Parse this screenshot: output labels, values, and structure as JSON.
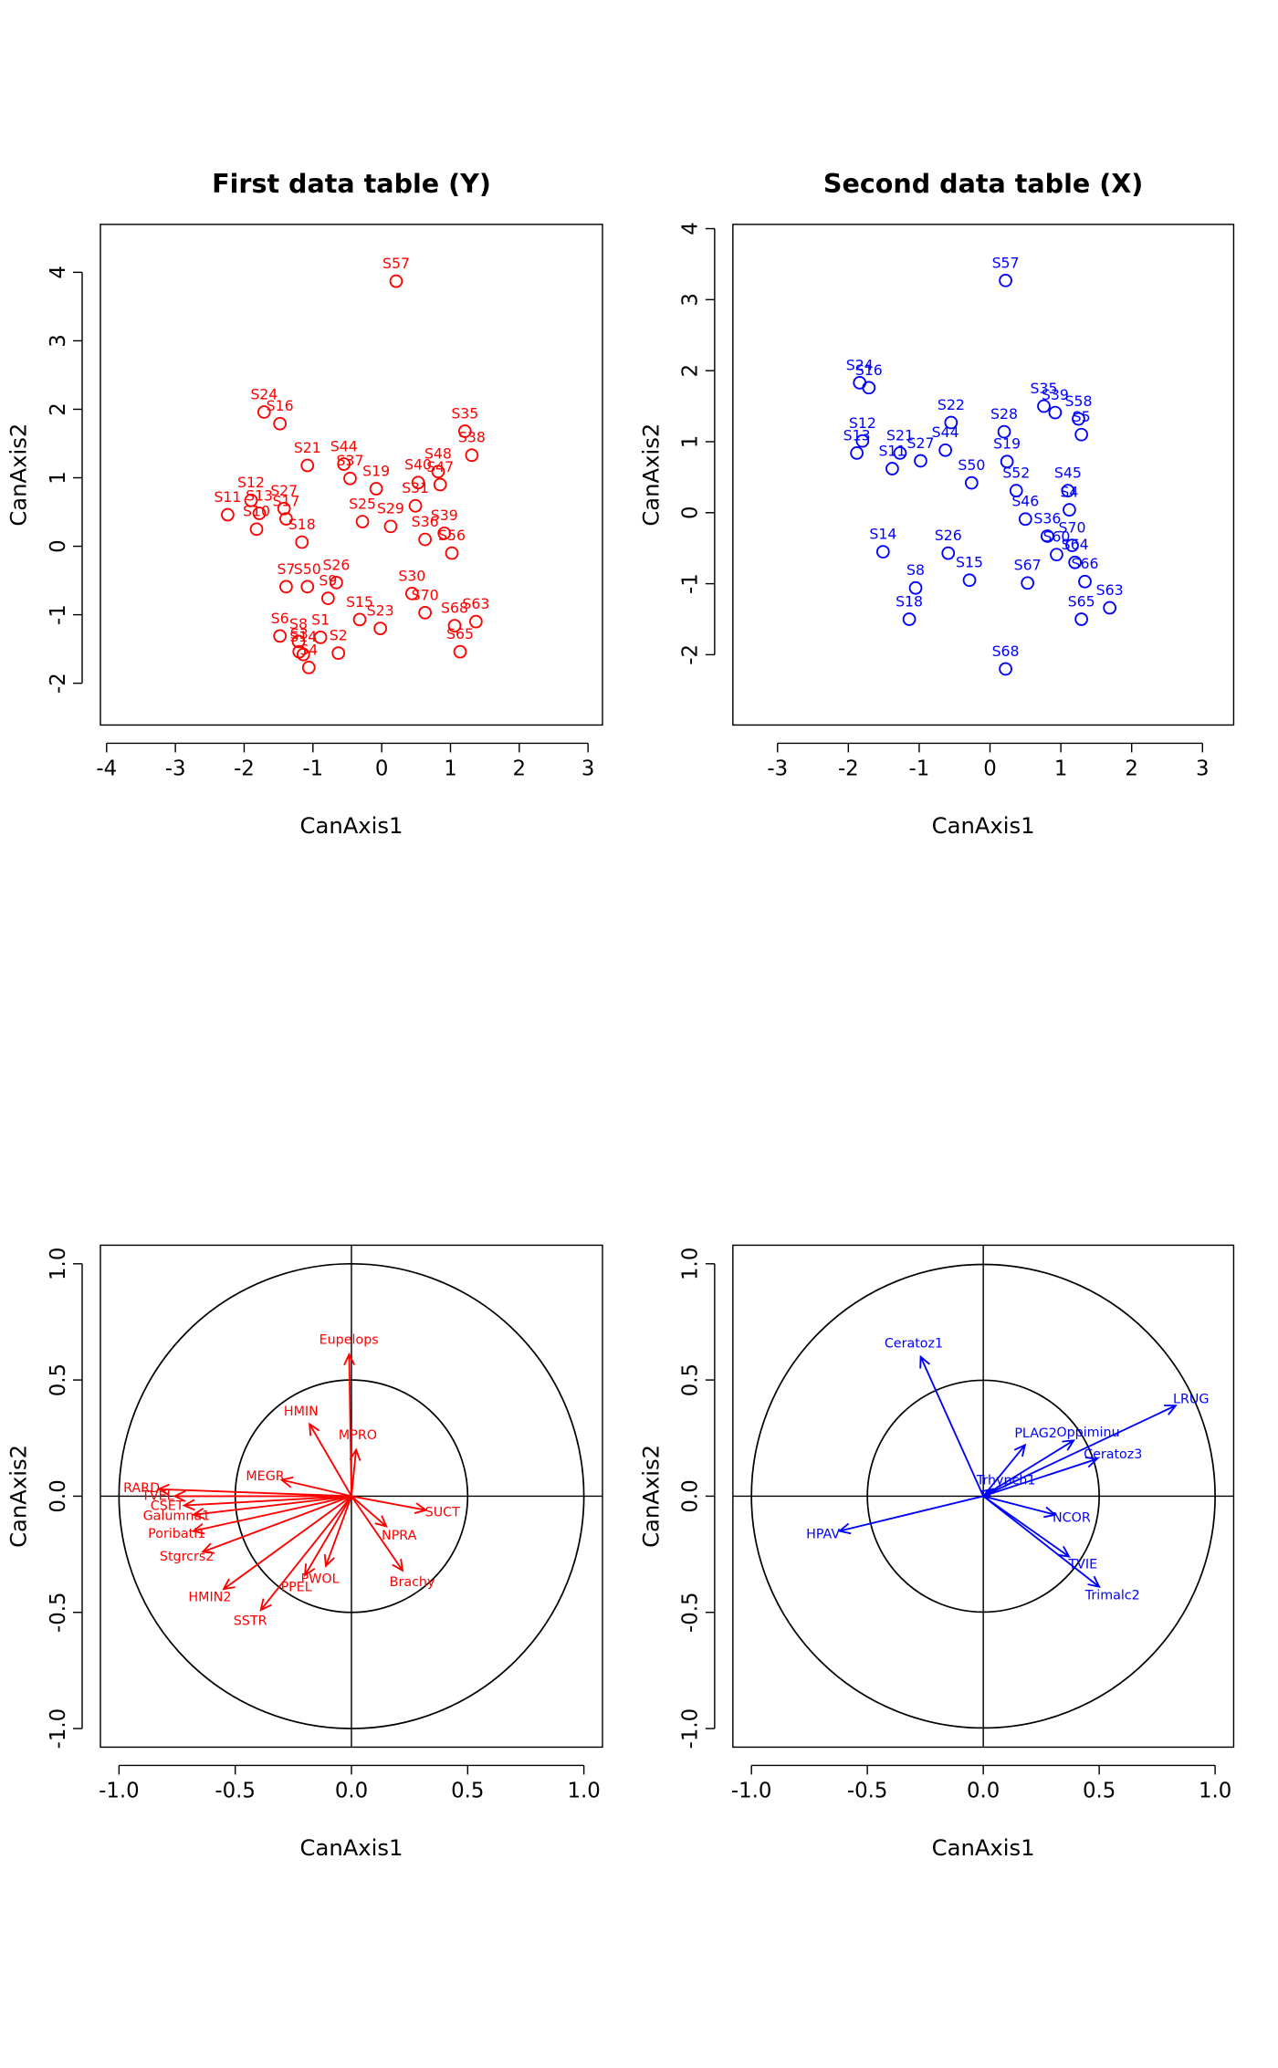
{
  "chart_data": [
    {
      "type": "scatter",
      "title": "First data table (Y)",
      "xlabel": "CanAxis1",
      "ylabel": "CanAxis2",
      "color": "#ff0000",
      "xlim": [
        -4.09,
        3.21
      ],
      "ylim": [
        -2.61,
        4.7
      ],
      "xticks": [
        -4,
        -3,
        -2,
        -1,
        0,
        1,
        2,
        3
      ],
      "yticks": [
        -2,
        -1,
        0,
        1,
        2,
        3,
        4
      ],
      "labels": [
        "S57",
        "S24",
        "S16",
        "S21",
        "S44",
        "S37",
        "S35",
        "S38",
        "S12",
        "S11",
        "S27",
        "S17",
        "S10",
        "S13",
        "S18",
        "S19",
        "S48",
        "S47",
        "S25",
        "S7",
        "S50",
        "S26",
        "S9",
        "S15",
        "S23",
        "S36",
        "S29",
        "S39",
        "S56",
        "S30",
        "S70",
        "S68",
        "S63",
        "S65",
        "S6",
        "S8",
        "S1",
        "S3",
        "S4",
        "S2",
        "S14",
        "S31",
        "S40"
      ],
      "x": [
        0.21,
        -1.71,
        -1.48,
        -1.08,
        -0.55,
        -0.46,
        1.21,
        1.31,
        -1.9,
        -2.24,
        -1.42,
        -1.39,
        -1.82,
        -1.78,
        -1.16,
        -0.08,
        0.82,
        0.85,
        -0.28,
        -1.39,
        -1.08,
        -0.66,
        -0.78,
        -0.32,
        -0.02,
        0.63,
        0.13,
        0.91,
        1.02,
        0.44,
        0.63,
        1.06,
        1.37,
        1.14,
        -1.48,
        -1.21,
        -0.89,
        -1.2,
        -1.06,
        -0.63,
        -1.14,
        0.49,
        0.53
      ],
      "y": [
        3.87,
        1.96,
        1.79,
        1.18,
        1.2,
        0.99,
        1.68,
        1.33,
        0.67,
        0.46,
        0.55,
        0.4,
        0.25,
        0.48,
        0.06,
        0.84,
        1.09,
        0.9,
        0.36,
        -0.59,
        -0.59,
        -0.53,
        -0.76,
        -1.07,
        -1.2,
        0.1,
        0.29,
        0.19,
        -0.1,
        -0.69,
        -0.97,
        -1.16,
        -1.1,
        -1.54,
        -1.31,
        -1.39,
        -1.33,
        -1.54,
        -1.77,
        -1.56,
        -1.58,
        0.59,
        0.93
      ]
    },
    {
      "type": "scatter",
      "title": "Second data table (X)",
      "xlabel": "CanAxis1",
      "ylabel": "CanAxis2",
      "color": "#0000ff",
      "xlim": [
        -3.63,
        3.44
      ],
      "ylim": [
        -2.99,
        4.06
      ],
      "xticks": [
        -3,
        -2,
        -1,
        0,
        1,
        2,
        3
      ],
      "yticks": [
        -2,
        -1,
        0,
        1,
        2,
        3,
        4
      ],
      "labels": [
        "S57",
        "S24",
        "S16",
        "S12",
        "S13",
        "S11",
        "S21",
        "S27",
        "S22",
        "S44",
        "S28",
        "S35",
        "S39",
        "S58",
        "S5",
        "S19",
        "S50",
        "S52",
        "S45",
        "S4",
        "S46",
        "S26",
        "S15",
        "S14",
        "S8",
        "S18",
        "S67",
        "S60",
        "S70",
        "S64",
        "S66",
        "S63",
        "S65",
        "S68",
        "S36"
      ],
      "x": [
        0.22,
        -1.84,
        -1.71,
        -1.8,
        -1.88,
        -1.38,
        -1.27,
        -0.98,
        -0.55,
        -0.63,
        0.2,
        0.76,
        0.92,
        1.25,
        1.29,
        0.24,
        -0.26,
        0.37,
        1.1,
        1.12,
        0.5,
        -0.59,
        -0.29,
        -1.51,
        -1.05,
        -1.14,
        0.53,
        0.94,
        1.16,
        1.2,
        1.34,
        1.69,
        1.29,
        0.22,
        0.81
      ],
      "y": [
        3.27,
        1.83,
        1.76,
        1.01,
        0.84,
        0.62,
        0.84,
        0.73,
        1.27,
        0.88,
        1.14,
        1.5,
        1.41,
        1.32,
        1.1,
        0.72,
        0.42,
        0.31,
        0.31,
        0.04,
        -0.09,
        -0.57,
        -0.95,
        -0.55,
        -1.06,
        -1.5,
        -0.99,
        -0.59,
        -0.46,
        -0.7,
        -0.97,
        -1.34,
        -1.5,
        -2.2,
        -0.33
      ]
    },
    {
      "type": "correlation-circle",
      "xlabel": "CanAxis1",
      "ylabel": "CanAxis2",
      "color": "#ff0000",
      "circles": [
        0.5,
        1
      ],
      "xlim": [
        -1.08,
        1.08
      ],
      "ylim": [
        -1.08,
        1.08
      ],
      "xticks": [
        {
          "value": -1,
          "label": "-1.0"
        },
        -0.5,
        {
          "value": 0,
          "label": "0.0"
        },
        0.5,
        {
          "value": 1,
          "label": "1.0"
        }
      ],
      "yticks": [
        {
          "value": -1,
          "label": "-1.0"
        },
        -0.5,
        {
          "value": 0,
          "label": "0.0"
        },
        0.5,
        {
          "value": 1,
          "label": "1.0"
        }
      ],
      "labels": [
        "Eupelops",
        "HMIN",
        "MPRO",
        "MEGR",
        "RARD",
        "TVEL",
        "CSET",
        "Galumna1",
        "SUCT",
        "NPRA",
        "Brachy",
        "Poribatl1",
        "Stgrcrs2",
        "HMIN2",
        "SSTR",
        "PPEL",
        "PWOL"
      ],
      "x": [
        -0.01,
        -0.18,
        0.02,
        -0.3,
        -0.83,
        -0.76,
        -0.72,
        -0.68,
        0.32,
        0.15,
        0.22,
        -0.68,
        -0.64,
        -0.55,
        -0.39,
        -0.2,
        -0.11
      ],
      "y": [
        0.61,
        0.31,
        0.2,
        0.07,
        0.03,
        0.0,
        -0.04,
        -0.08,
        -0.06,
        -0.13,
        -0.32,
        -0.15,
        -0.24,
        -0.4,
        -0.49,
        -0.34,
        -0.3
      ]
    },
    {
      "type": "correlation-circle",
      "xlabel": "CanAxis1",
      "ylabel": "CanAxis2",
      "color": "#0000ff",
      "circles": [
        0.5,
        1
      ],
      "xlim": [
        -1.08,
        1.08
      ],
      "ylim": [
        -1.08,
        1.08
      ],
      "xticks": [
        {
          "value": -1,
          "label": "-1.0"
        },
        -0.5,
        {
          "value": 0,
          "label": "0.0"
        },
        0.5,
        {
          "value": 1,
          "label": "1.0"
        }
      ],
      "yticks": [
        {
          "value": -1,
          "label": "-1.0"
        },
        -0.5,
        {
          "value": 0,
          "label": "0.0"
        },
        0.5,
        {
          "value": 1,
          "label": "1.0"
        }
      ],
      "labels": [
        "Ceratoz1",
        "LRUG",
        "Oppiminu",
        "PLAG2",
        "Ceratoz3",
        "Trhypch1",
        "HPAV",
        "NCOR",
        "TVIE",
        "Trimalc2"
      ],
      "x": [
        -0.27,
        0.83,
        0.39,
        0.18,
        0.49,
        0.04,
        -0.62,
        0.31,
        0.37,
        0.5
      ],
      "y": [
        0.6,
        0.39,
        0.24,
        0.22,
        0.16,
        0.03,
        -0.15,
        -0.08,
        -0.26,
        -0.39
      ]
    }
  ]
}
